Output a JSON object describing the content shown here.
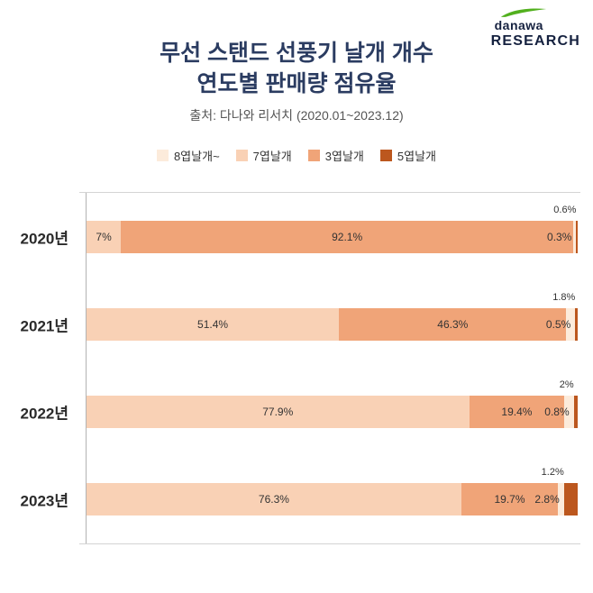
{
  "header": {
    "title_line1": "무선 스탠드 선풍기 날개 개수",
    "title_line2": "연도별 판매량 점유율",
    "subtitle": "출처: 다나와 리서치 (2020.01~2023.12)",
    "logo": {
      "brand": "danawa",
      "sub": "RESEARCH",
      "swoosh_color": "#52b01e"
    }
  },
  "chart_data": {
    "type": "bar",
    "orientation": "horizontal",
    "stacked": true,
    "unit": "%",
    "title": "무선 스탠드 선풍기 날개 개수 연도별 판매량 점유율",
    "source": "출처: 다나와 리서치 (2020.01~2023.12)",
    "categories": [
      "2020년",
      "2021년",
      "2022년",
      "2023년"
    ],
    "xlim": [
      0,
      100
    ],
    "grid": false,
    "legend_position": "top",
    "legend_order": [
      "8엽날개~",
      "7엽날개",
      "3엽날개",
      "5엽날개"
    ],
    "series": [
      {
        "name": "7엽날개",
        "color": "#f9d1b5",
        "label_position": "inside",
        "values": [
          7,
          51.4,
          77.9,
          76.3
        ]
      },
      {
        "name": "3엽날개",
        "color": "#f0a478",
        "label_position": "inside",
        "values": [
          92.1,
          46.3,
          19.4,
          19.7
        ]
      },
      {
        "name": "8엽날개~",
        "color": "#fcebdb",
        "label_position": "above",
        "values": [
          0.6,
          1.8,
          2,
          1.2
        ]
      },
      {
        "name": "5엽날개",
        "color": "#bc571e",
        "label_position": "outside",
        "values": [
          0.3,
          0.5,
          0.8,
          2.8
        ]
      }
    ]
  }
}
